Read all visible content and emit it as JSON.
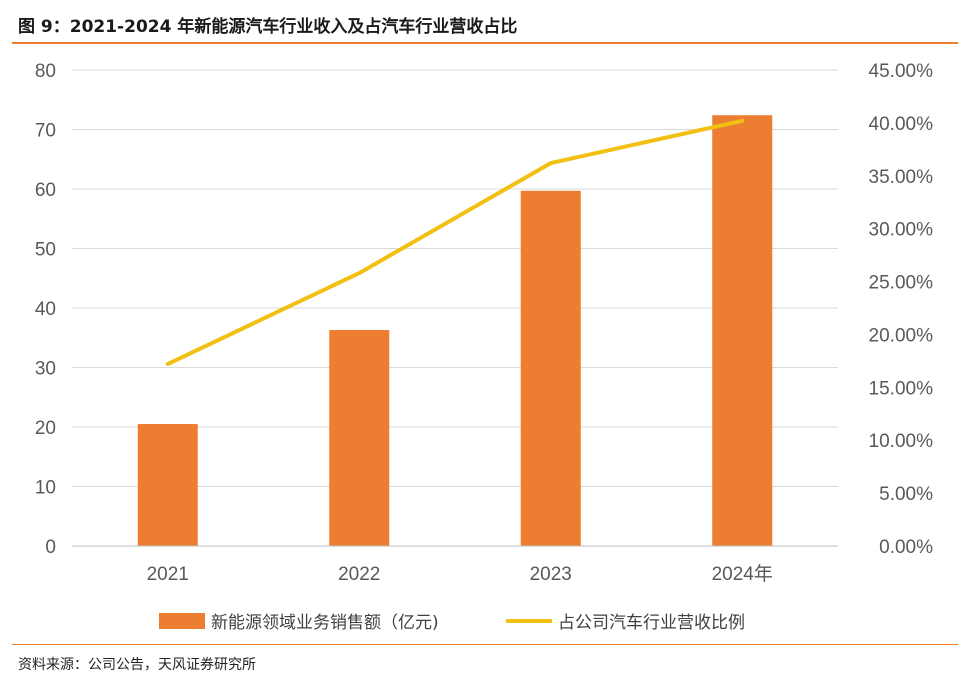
{
  "figure": {
    "title": "图 9：2021-2024 年新能源汽车行业收入及占汽车行业营收占比",
    "source": "资料来源：公司公告，天风证券研究所"
  },
  "chart_data": {
    "type": "bar",
    "categories": [
      "2021",
      "2022",
      "2023",
      "2024年"
    ],
    "series": [
      {
        "name": "新能源领域业务销售额（亿元)",
        "type": "bar",
        "axis": "left",
        "color": "#ED7D31",
        "values": [
          20.5,
          36.3,
          59.7,
          72.4
        ]
      },
      {
        "name": "占公司汽车行业营收比例",
        "type": "line",
        "axis": "right",
        "color": "#F2C012",
        "values": [
          17.2,
          25.8,
          36.2,
          40.2
        ]
      }
    ],
    "y_left": {
      "range": [
        0,
        80
      ],
      "ticks": [
        "0",
        "10",
        "20",
        "30",
        "40",
        "50",
        "60",
        "70",
        "80"
      ]
    },
    "y_right": {
      "range": [
        0,
        45
      ],
      "ticks": [
        "0.00%",
        "5.00%",
        "10.00%",
        "15.00%",
        "20.00%",
        "25.00%",
        "30.00%",
        "35.00%",
        "40.00%",
        "45.00%"
      ]
    },
    "grid": true,
    "legend_position": "bottom"
  }
}
